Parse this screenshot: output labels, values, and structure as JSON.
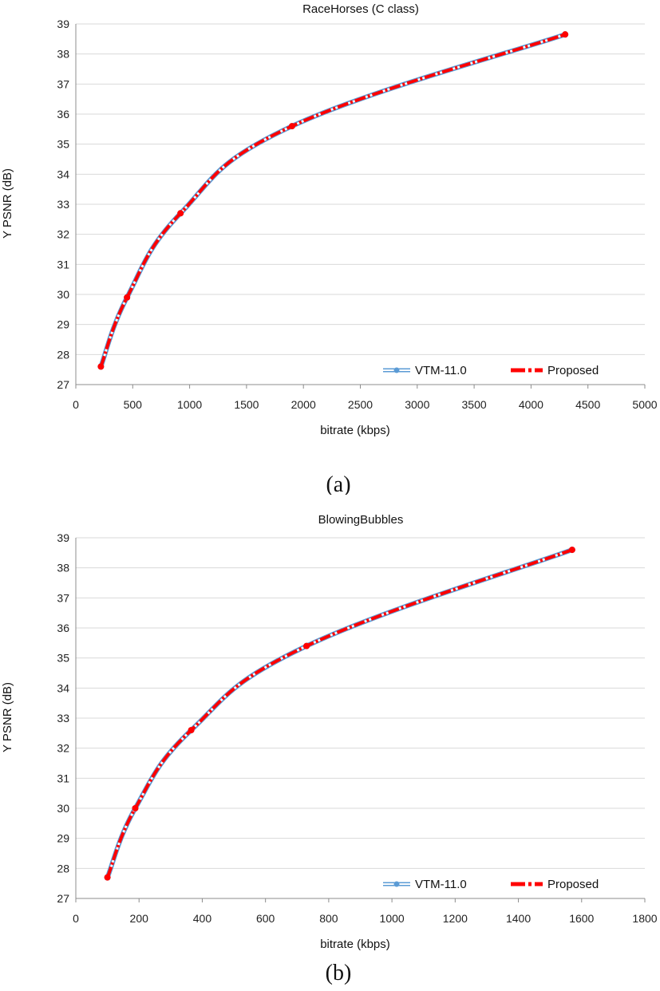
{
  "colors": {
    "vtm": "#5b9bd5",
    "proposed": "#ff0000",
    "grid": "#d9d9d9"
  },
  "chart_data": [
    {
      "type": "line",
      "title": "RaceHorses (C class)",
      "xlabel": "bitrate (kbps)",
      "ylabel": "Y PSNR (dB)",
      "xlim": [
        0,
        5000
      ],
      "ylim": [
        27,
        39
      ],
      "xticks": [
        0,
        500,
        1000,
        1500,
        2000,
        2500,
        3000,
        3500,
        4000,
        4500,
        5000
      ],
      "yticks": [
        27,
        28,
        29,
        30,
        31,
        32,
        33,
        34,
        35,
        36,
        37,
        38,
        39
      ],
      "grid": true,
      "legend": "bottom-right",
      "caption": "(a)",
      "series": [
        {
          "name": "VTM-11.0",
          "x": [
            220,
            450,
            920,
            1900,
            4300
          ],
          "y": [
            27.6,
            29.9,
            32.7,
            35.6,
            38.65
          ]
        },
        {
          "name": "Proposed",
          "x": [
            220,
            450,
            920,
            1900,
            4300
          ],
          "y": [
            27.6,
            29.9,
            32.7,
            35.6,
            38.65
          ]
        }
      ]
    },
    {
      "type": "line",
      "title": "BlowingBubbles",
      "xlabel": "bitrate (kbps)",
      "ylabel": "Y PSNR (dB)",
      "xlim": [
        0,
        1800
      ],
      "ylim": [
        27,
        39
      ],
      "xticks": [
        0,
        200,
        400,
        600,
        800,
        1000,
        1200,
        1400,
        1600,
        1800
      ],
      "yticks": [
        27,
        28,
        29,
        30,
        31,
        32,
        33,
        34,
        35,
        36,
        37,
        38,
        39
      ],
      "grid": true,
      "legend": "bottom-right",
      "caption": "(b)",
      "series": [
        {
          "name": "VTM-11.0",
          "x": [
            100,
            188,
            365,
            730,
            1570
          ],
          "y": [
            27.7,
            30.0,
            32.6,
            35.4,
            38.6
          ]
        },
        {
          "name": "Proposed",
          "x": [
            100,
            188,
            365,
            730,
            1570
          ],
          "y": [
            27.7,
            30.0,
            32.6,
            35.4,
            38.6
          ]
        }
      ]
    }
  ]
}
